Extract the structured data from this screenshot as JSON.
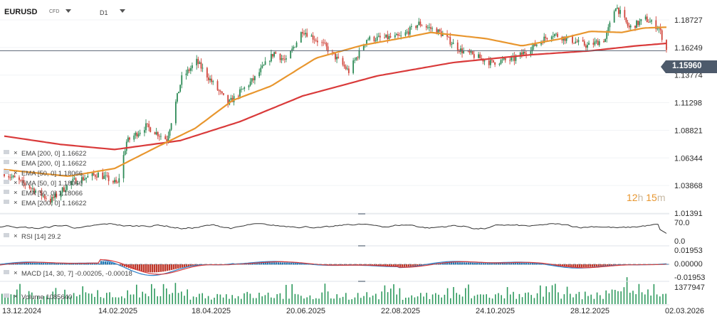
{
  "header": {
    "symbol": "EURUSD",
    "instrument_type": "CFD",
    "timeframe": "D1"
  },
  "colors": {
    "ema200": "#d93a3a",
    "ema50": "#e8962e",
    "candle_up": "#2e8b57",
    "candle_down": "#d0443a",
    "rsi": "#333333",
    "macd_line": "#2a7fc8",
    "signal_line": "#d93a3a",
    "hist_up": "#1f77b4",
    "hist_down": "#c0392b",
    "volume": "#2e9a5e",
    "current_price": "#4d5a6b"
  },
  "current_price": "1.15960",
  "timer": {
    "hours": "12",
    "h_unit": "h",
    "minutes": "15",
    "m_unit": "m"
  },
  "overlays": [
    "EMA [200,  0]  1.16622",
    "EMA [200,  0]  1.16622",
    "EMA [50,  0]  1.18066",
    "EMA [50,  0]  1.18066",
    "EMA [50,  0]  1.18066",
    "EMA [200,  0]  1.16622"
  ],
  "panels": {
    "rsi": {
      "label": "RSI [14]  29.2",
      "ticks": [
        "70.0",
        "0.0"
      ]
    },
    "macd": {
      "label": "MACD [14, 30, 7]  -0.00205,  -0.00018",
      "ticks": [
        "0.01953",
        "0.00000",
        "-0.01953"
      ]
    },
    "volume": {
      "label": "Volume  1085640",
      "ticks": [
        "1377947"
      ]
    }
  },
  "chart_data": {
    "type": "candlestick",
    "price_axis_ticks": [
      "1.18727",
      "1.16249",
      "1.13774",
      "1.11298",
      "1.08821",
      "1.06344",
      "1.03868",
      "1.01391"
    ],
    "price_ylim": [
      1.01391,
      1.2
    ],
    "x_tick_labels": [
      "13.12.2024",
      "14.02.2025",
      "18.04.2025",
      "20.06.2025",
      "22.08.2025",
      "24.10.2025",
      "28.12.2025",
      "02.03.2026"
    ],
    "x_range": [
      "2024-12-13",
      "2026-03-02"
    ],
    "close_path": [
      [
        "2024-12-13",
        1.05
      ],
      [
        "2025-01-02",
        1.035
      ],
      [
        "2025-01-13",
        1.025
      ],
      [
        "2025-01-27",
        1.042
      ],
      [
        "2025-02-14",
        1.049
      ],
      [
        "2025-02-27",
        1.04
      ],
      [
        "2025-03-05",
        1.078
      ],
      [
        "2025-03-18",
        1.092
      ],
      [
        "2025-04-01",
        1.08
      ],
      [
        "2025-04-11",
        1.135
      ],
      [
        "2025-04-21",
        1.15
      ],
      [
        "2025-05-12",
        1.112
      ],
      [
        "2025-05-30",
        1.135
      ],
      [
        "2025-06-12",
        1.158
      ],
      [
        "2025-06-20",
        1.15
      ],
      [
        "2025-07-01",
        1.178
      ],
      [
        "2025-07-15",
        1.165
      ],
      [
        "2025-08-01",
        1.141
      ],
      [
        "2025-08-13",
        1.17
      ],
      [
        "2025-09-05",
        1.172
      ],
      [
        "2025-09-17",
        1.184
      ],
      [
        "2025-10-01",
        1.176
      ],
      [
        "2025-10-15",
        1.16
      ],
      [
        "2025-11-04",
        1.149
      ],
      [
        "2025-11-20",
        1.152
      ],
      [
        "2025-12-01",
        1.162
      ],
      [
        "2025-12-15",
        1.175
      ],
      [
        "2026-01-08",
        1.164
      ],
      [
        "2026-01-20",
        1.17
      ],
      [
        "2026-01-27",
        1.2
      ],
      [
        "2026-02-05",
        1.18
      ],
      [
        "2026-02-16",
        1.188
      ],
      [
        "2026-02-25",
        1.18
      ],
      [
        "2026-03-02",
        1.16
      ]
    ],
    "series": [
      {
        "name": "EMA [200,  0]",
        "last": 1.16622,
        "points": [
          [
            "2024-12-13",
            1.083
          ],
          [
            "2025-01-20",
            1.0755
          ],
          [
            "2025-02-25",
            1.071
          ],
          [
            "2025-04-10",
            1.079
          ],
          [
            "2025-05-20",
            1.096
          ],
          [
            "2025-07-01",
            1.119
          ],
          [
            "2025-08-20",
            1.137
          ],
          [
            "2025-10-10",
            1.149
          ],
          [
            "2025-12-01",
            1.156
          ],
          [
            "2026-01-10",
            1.1595
          ],
          [
            "2026-02-10",
            1.164
          ],
          [
            "2026-03-02",
            1.1662
          ]
        ]
      },
      {
        "name": "EMA [50,  0]",
        "last": 1.18066,
        "points": [
          [
            "2024-12-13",
            1.053
          ],
          [
            "2025-01-25",
            1.047
          ],
          [
            "2025-02-25",
            1.054
          ],
          [
            "2025-03-25",
            1.073
          ],
          [
            "2025-04-20",
            1.09
          ],
          [
            "2025-05-15",
            1.115
          ],
          [
            "2025-06-10",
            1.128
          ],
          [
            "2025-07-10",
            1.153
          ],
          [
            "2025-08-10",
            1.1645
          ],
          [
            "2025-09-10",
            1.172
          ],
          [
            "2025-09-25",
            1.176
          ],
          [
            "2025-11-01",
            1.1705
          ],
          [
            "2025-11-25",
            1.164
          ],
          [
            "2025-12-20",
            1.17
          ],
          [
            "2026-01-10",
            1.177
          ],
          [
            "2026-01-31",
            1.176
          ],
          [
            "2026-02-15",
            1.18
          ],
          [
            "2026-03-02",
            1.1807
          ]
        ]
      }
    ],
    "rsi_last": 29.2,
    "macd_last": -0.00205,
    "signal_last": -0.00018,
    "volume_max": 1377947
  }
}
